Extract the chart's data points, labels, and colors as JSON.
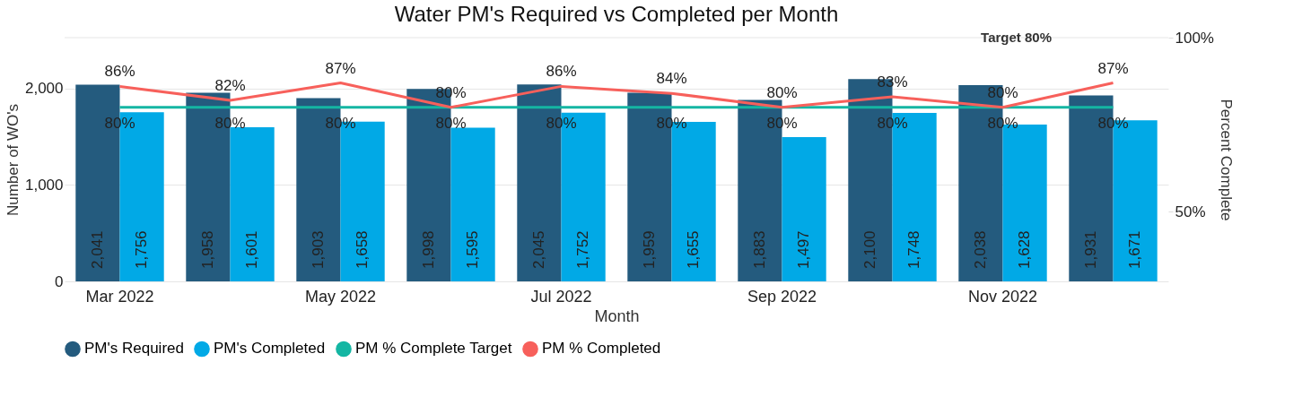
{
  "chart_data": {
    "type": "bar",
    "title": "Water PM's Required vs Completed per Month",
    "xlabel": "Month",
    "ylabel": "Number of WO's",
    "y2label": "Percent Complete",
    "categories": [
      "Mar 2022",
      null,
      "May 2022",
      null,
      "Jul 2022",
      null,
      "Sep 2022",
      null,
      "Nov 2022",
      null
    ],
    "series": [
      {
        "name": "PM's Required",
        "color": "#245b7e",
        "values": [
          2041,
          1958,
          1903,
          1998,
          2045,
          1959,
          1883,
          2100,
          2038,
          1931
        ],
        "value_labels": [
          "2,041",
          "1,958",
          "1,903",
          "1,998",
          "2,045",
          "1,959",
          "1,883",
          "2,100",
          "2,038",
          "1,931"
        ]
      },
      {
        "name": "PM's Completed",
        "color": "#01a9e6",
        "values": [
          1756,
          1601,
          1658,
          1595,
          1752,
          1655,
          1497,
          1748,
          1628,
          1671
        ],
        "value_labels": [
          "1,756",
          "1,601",
          "1,658",
          "1,595",
          "1,752",
          "1,655",
          "1,497",
          "1,748",
          "1,628",
          "1,671"
        ]
      },
      {
        "name": "PM % Complete Target",
        "type": "line",
        "axis": "y2",
        "color": "#14b6a3",
        "values": [
          80,
          80,
          80,
          80,
          80,
          80,
          80,
          80,
          80,
          80
        ],
        "value_labels": [
          "80%",
          "80%",
          "80%",
          "80%",
          "80%",
          "80%",
          "80%",
          "80%",
          "80%",
          "80%"
        ]
      },
      {
        "name": "PM % Completed",
        "type": "line",
        "axis": "y2",
        "color": "#f7605b",
        "values": [
          86,
          82,
          87,
          80,
          86,
          84,
          80,
          83,
          80,
          87
        ],
        "value_labels": [
          "86%",
          "82%",
          "87%",
          "80%",
          "86%",
          "84%",
          "80%",
          "83%",
          "80%",
          "87%"
        ]
      }
    ],
    "ylim": [
      0,
      2530
    ],
    "yticks": [
      0,
      {
        "value": 1000,
        "label": "1,000"
      },
      {
        "value": 2000,
        "label": "2,000"
      }
    ],
    "y2lim": [
      30,
      100
    ],
    "y2ticks": [
      {
        "value": 50,
        "label": "50%"
      },
      {
        "value": 100,
        "label": "100%"
      }
    ],
    "annotations": [
      "Target 80%"
    ],
    "grid": "y",
    "legend": "bottom",
    "marker": "none",
    "line_style": "solid"
  }
}
